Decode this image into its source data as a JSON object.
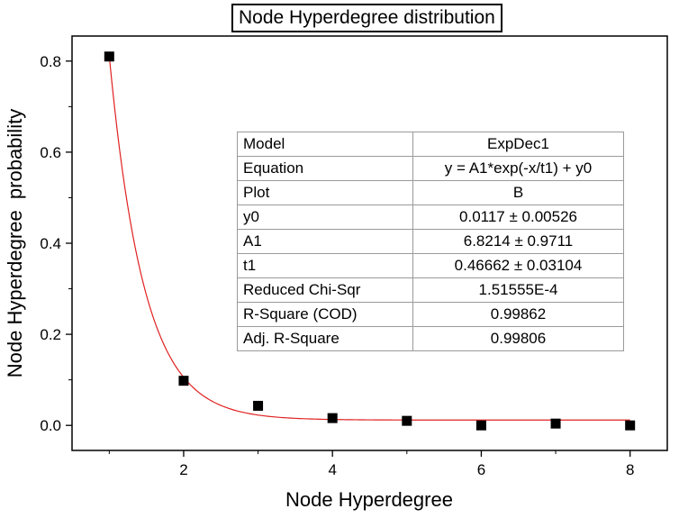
{
  "chart_data": {
    "type": "scatter",
    "title": "Node Hyperdegree distribution",
    "xlabel": "Node Hyperdegree",
    "ylabel": "Node Hyperdegree  probability",
    "xlim": [
      0.5,
      8.5
    ],
    "ylim": [
      -0.055,
      0.855
    ],
    "xticks": [
      "2",
      "4",
      "6",
      "8"
    ],
    "xtick_values": [
      2,
      4,
      6,
      8
    ],
    "yticks": [
      "0.0",
      "0.2",
      "0.4",
      "0.6",
      "0.8"
    ],
    "ytick_values": [
      0.0,
      0.2,
      0.4,
      0.6,
      0.8
    ],
    "grid": false,
    "series": [
      {
        "marker": "square",
        "color": "#000000",
        "x": [
          1,
          2,
          3,
          4,
          5,
          6,
          7,
          8
        ],
        "y": [
          0.81,
          0.098,
          0.043,
          0.016,
          0.01,
          0.0,
          0.004,
          0.0
        ]
      }
    ],
    "fit": {
      "model": "ExpDec1",
      "color": "#e02020",
      "y0": 0.0117,
      "A1": 6.8214,
      "t1": 0.46662,
      "x_range": [
        1,
        8
      ]
    },
    "fit_table": [
      {
        "label": "Model",
        "value": "ExpDec1"
      },
      {
        "label": "Equation",
        "value": "y = A1*exp(-x/t1) + y0"
      },
      {
        "label": "Plot",
        "value": "B"
      },
      {
        "label": "y0",
        "value": "0.0117 ± 0.00526"
      },
      {
        "label": "A1",
        "value": "6.8214 ± 0.9711"
      },
      {
        "label": "t1",
        "value": "0.46662 ± 0.03104"
      },
      {
        "label": "Reduced Chi-Sqr",
        "value": "1.51555E-4"
      },
      {
        "label": "R-Square (COD)",
        "value": "0.99862"
      },
      {
        "label": "Adj. R-Square",
        "value": "0.99806"
      }
    ]
  }
}
